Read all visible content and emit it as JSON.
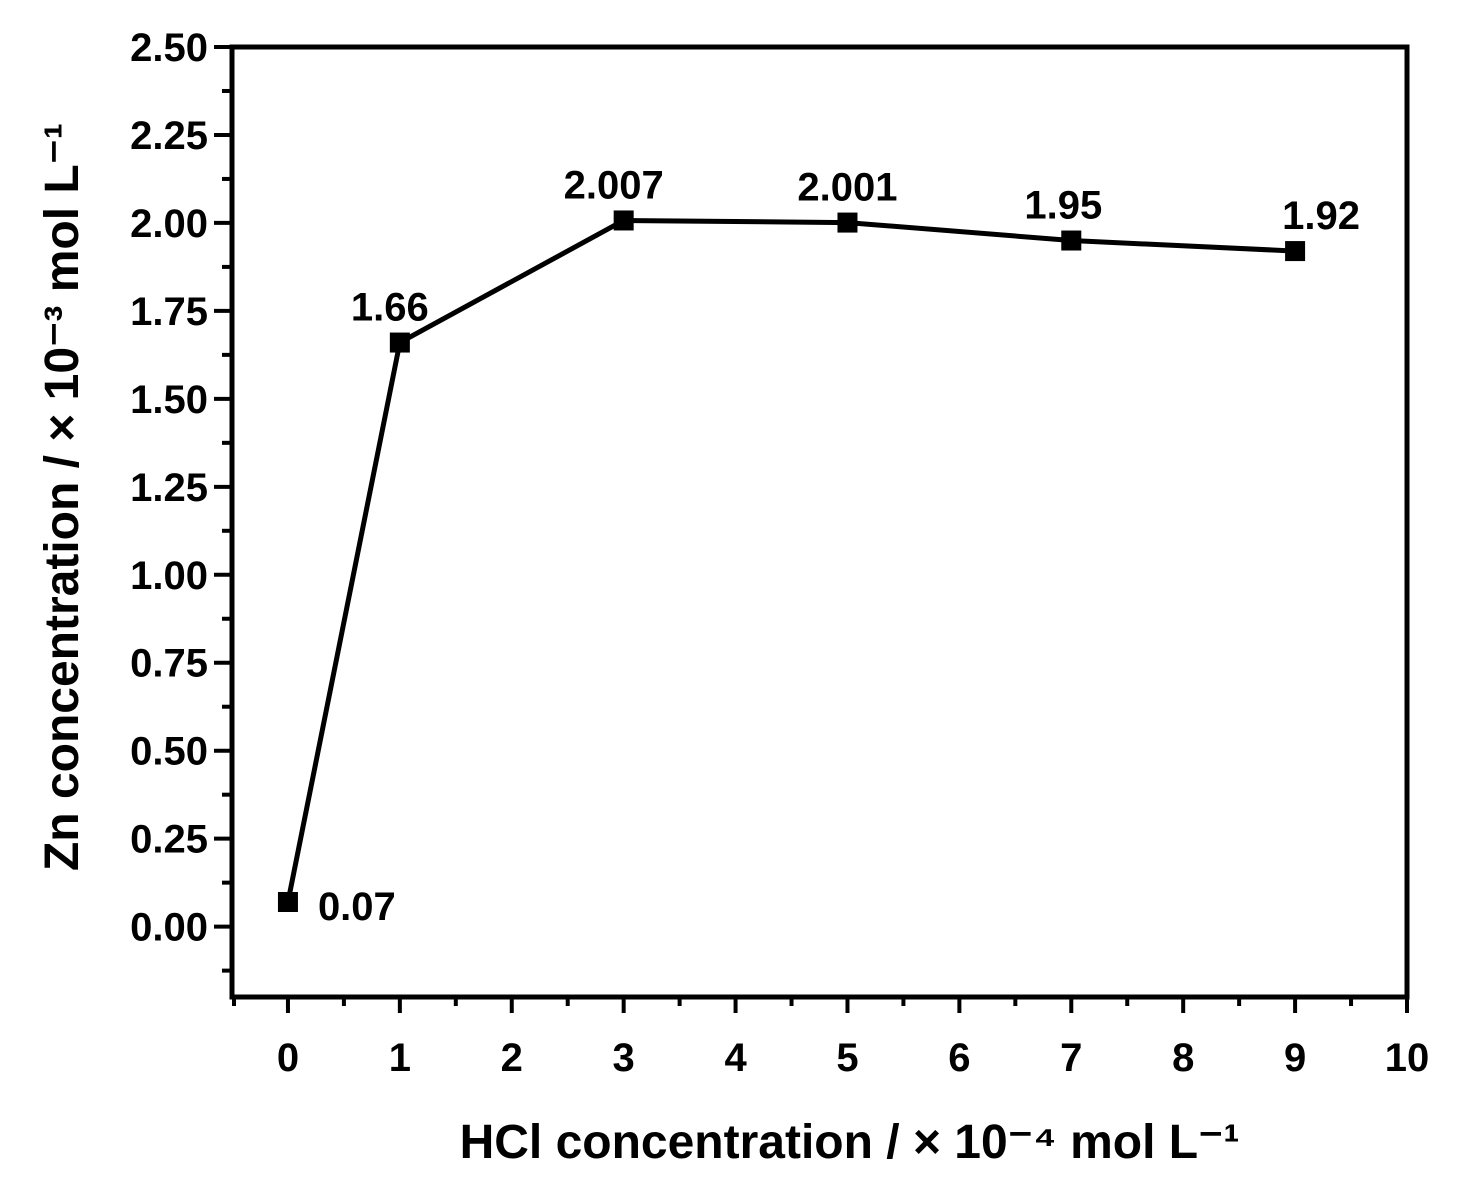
{
  "chart_data": {
    "type": "line",
    "xlabel": "HCl concentration / × 10⁻⁴ mol L⁻¹",
    "ylabel": "Zn concentration / × 10⁻³ mol L⁻¹",
    "xlim": [
      -0.5,
      10
    ],
    "ylim": [
      -0.2,
      2.5
    ],
    "x_ticks": [
      0,
      1,
      2,
      3,
      4,
      5,
      6,
      7,
      8,
      9,
      10
    ],
    "x_tick_labels": [
      "0",
      "1",
      "2",
      "3",
      "4",
      "5",
      "6",
      "7",
      "8",
      "9",
      "10"
    ],
    "y_ticks": [
      0,
      0.25,
      0.5,
      0.75,
      1.0,
      1.25,
      1.5,
      1.75,
      2.0,
      2.25,
      2.5
    ],
    "y_tick_labels": [
      "0.00",
      "0.25",
      "0.50",
      "0.75",
      "1.00",
      "1.25",
      "1.50",
      "1.75",
      "2.00",
      "2.25",
      "2.50"
    ],
    "series": [
      {
        "x": [
          0,
          1,
          3,
          5,
          7,
          9
        ],
        "y": [
          0.07,
          1.66,
          2.007,
          2.001,
          1.95,
          1.92
        ],
        "labels": [
          "0.07",
          "1.66",
          "2.007",
          "2.001",
          "1.95",
          "1.92"
        ],
        "marker": "square",
        "color": "#000000"
      }
    ],
    "grid": false,
    "legend": "none"
  }
}
